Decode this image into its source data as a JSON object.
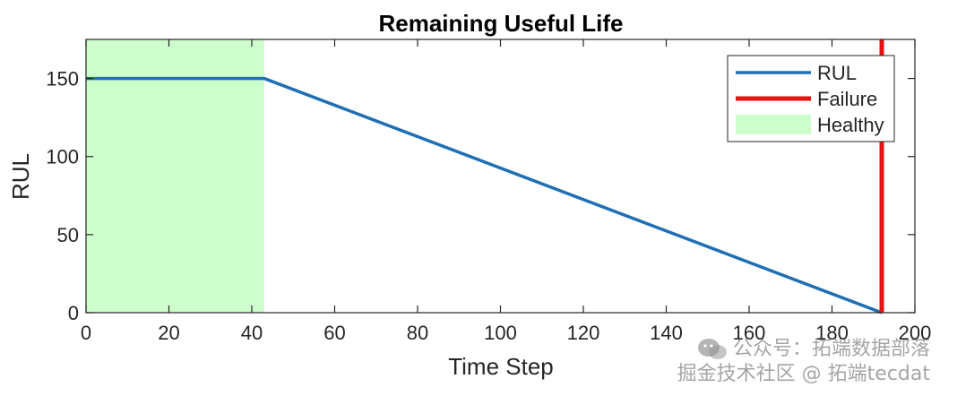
{
  "chart_data": {
    "type": "line",
    "title": "Remaining Useful Life",
    "xlabel": "Time Step",
    "ylabel": "RUL",
    "xlim": [
      0,
      200
    ],
    "ylim": [
      0,
      175
    ],
    "xticks": [
      0,
      20,
      40,
      60,
      80,
      100,
      120,
      140,
      160,
      180,
      200
    ],
    "yticks": [
      0,
      50,
      100,
      150
    ],
    "grid": false,
    "legend_position": "top-right",
    "series": [
      {
        "name": "RUL",
        "color": "#1f6fb4",
        "x": [
          0,
          43,
          192
        ],
        "y": [
          150,
          150,
          0
        ]
      },
      {
        "name": "Failure",
        "color": "#e81010",
        "type": "vertical-line",
        "x": 192
      },
      {
        "name": "Healthy",
        "color": "#ccffcc",
        "type": "shaded-region",
        "x_range": [
          0,
          43
        ]
      }
    ]
  },
  "watermark": {
    "line1": "公众号：拓端数据部落",
    "line2": "掘金技术社区 @ 拓端tecdat"
  }
}
